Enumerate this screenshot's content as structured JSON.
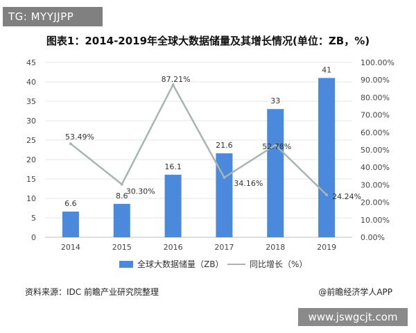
{
  "watermark_tag": "TG: MYYJJPP",
  "site_label": "www.jswgcjt.com",
  "source": "资料来源：IDC 前瞻产业研究院整理",
  "credit": "@前瞻经济学人APP",
  "colors": {
    "bar": "#4a89dc",
    "line": "#a6b5b3",
    "grid": "#e6e6e6"
  },
  "chart_data": {
    "type": "bar",
    "title": "图表1：2014-2019年全球大数据储量及其增长情况(单位：ZB，%)",
    "categories": [
      "2014",
      "2015",
      "2016",
      "2017",
      "2018",
      "2019"
    ],
    "series": [
      {
        "name": "全球大数据储量（ZB）",
        "type": "bar",
        "axis": "left",
        "values": [
          6.6,
          8.6,
          16.1,
          21.6,
          33,
          41
        ],
        "labels": [
          "6.6",
          "8.6",
          "16.1",
          "21.6",
          "33",
          "41"
        ]
      },
      {
        "name": "同比增长（%）",
        "type": "line",
        "axis": "right",
        "values": [
          53.49,
          30.3,
          87.21,
          34.16,
          52.78,
          24.24
        ],
        "labels": [
          "53.49%",
          "30.30%",
          "87.21%",
          "34.16%",
          "52.78%",
          "24.24%"
        ]
      }
    ],
    "y_left": {
      "min": 0,
      "max": 45,
      "step": 5,
      "ticks": [
        "0",
        "5",
        "10",
        "15",
        "20",
        "25",
        "30",
        "35",
        "40",
        "45"
      ]
    },
    "y_right": {
      "min": 0,
      "max": 100,
      "step": 10,
      "ticks": [
        "0.00%",
        "10.00%",
        "20.00%",
        "30.00%",
        "40.00%",
        "50.00%",
        "60.00%",
        "70.00%",
        "80.00%",
        "90.00%",
        "100.00%"
      ]
    },
    "grid": true,
    "legend": "bottom"
  }
}
